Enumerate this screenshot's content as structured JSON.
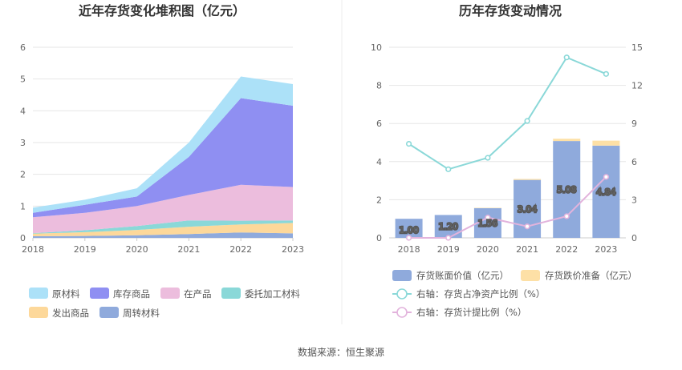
{
  "chart_data": [
    {
      "type": "area",
      "title": "近年存货变化堆积图（亿元）",
      "x": [
        "2018",
        "2019",
        "2020",
        "2021",
        "2022",
        "2023"
      ],
      "ylim": [
        0,
        6
      ],
      "yticks": [
        "0",
        "1",
        "2",
        "3",
        "4",
        "5",
        "6"
      ],
      "grid": true,
      "legend_position": "bottom",
      "series": [
        {
          "name": "周转材料",
          "color": "#8faadc",
          "values": [
            0.05,
            0.06,
            0.08,
            0.12,
            0.17,
            0.14
          ]
        },
        {
          "name": "发出商品",
          "color": "#fdd89a",
          "values": [
            0.08,
            0.12,
            0.17,
            0.23,
            0.25,
            0.33
          ]
        },
        {
          "name": "委托加工材料",
          "color": "#8ad8d8",
          "values": [
            0.02,
            0.06,
            0.12,
            0.2,
            0.12,
            0.08
          ]
        },
        {
          "name": "在产品",
          "color": "#ecbddd",
          "values": [
            0.5,
            0.55,
            0.63,
            0.8,
            1.13,
            1.05
          ]
        },
        {
          "name": "库存商品",
          "color": "#8f8ff2",
          "values": [
            0.14,
            0.25,
            0.3,
            1.2,
            2.73,
            2.56
          ]
        },
        {
          "name": "原材料",
          "color": "#ace1f8",
          "values": [
            0.16,
            0.16,
            0.26,
            0.45,
            0.68,
            0.68
          ]
        }
      ],
      "legend_order": [
        "原材料",
        "库存商品",
        "在产品",
        "委托加工材料",
        "发出商品",
        "周转材料"
      ]
    },
    {
      "type": "bar",
      "title": "历年存货变动情况",
      "categories": [
        "2018",
        "2019",
        "2020",
        "2021",
        "2022",
        "2023"
      ],
      "ylim": [
        0,
        10
      ],
      "yticks": [
        "0",
        "2",
        "4",
        "6",
        "8",
        "10"
      ],
      "y2lim": [
        0,
        15
      ],
      "y2ticks": [
        "0",
        "3",
        "6",
        "9",
        "12",
        "15"
      ],
      "bar_labels": [
        "1.00",
        "1.20",
        "1.56",
        "3.04",
        "5.08",
        "4.84"
      ],
      "series": [
        {
          "name": "存货账面价值（亿元）",
          "type": "bar",
          "color": "#8faadc",
          "values": [
            1.0,
            1.2,
            1.56,
            3.04,
            5.08,
            4.84
          ]
        },
        {
          "name": "存货跌价准备（亿元）",
          "type": "bar",
          "color": "#fde0a6",
          "values": [
            0.0,
            0.0,
            0.02,
            0.05,
            0.12,
            0.26
          ]
        },
        {
          "name": "右轴：存货占净资产比例（%）",
          "type": "line",
          "axis": "right",
          "color": "#8ad8d8",
          "values": [
            7.4,
            5.4,
            6.3,
            9.2,
            14.2,
            12.9
          ]
        },
        {
          "name": "右轴：存货计提比例（%）",
          "type": "line",
          "axis": "right",
          "color": "#e2b3dc",
          "values": [
            0.0,
            0.0,
            1.6,
            0.9,
            1.7,
            4.8
          ]
        }
      ]
    }
  ],
  "footer": {
    "source": "数据来源：恒生聚源"
  }
}
